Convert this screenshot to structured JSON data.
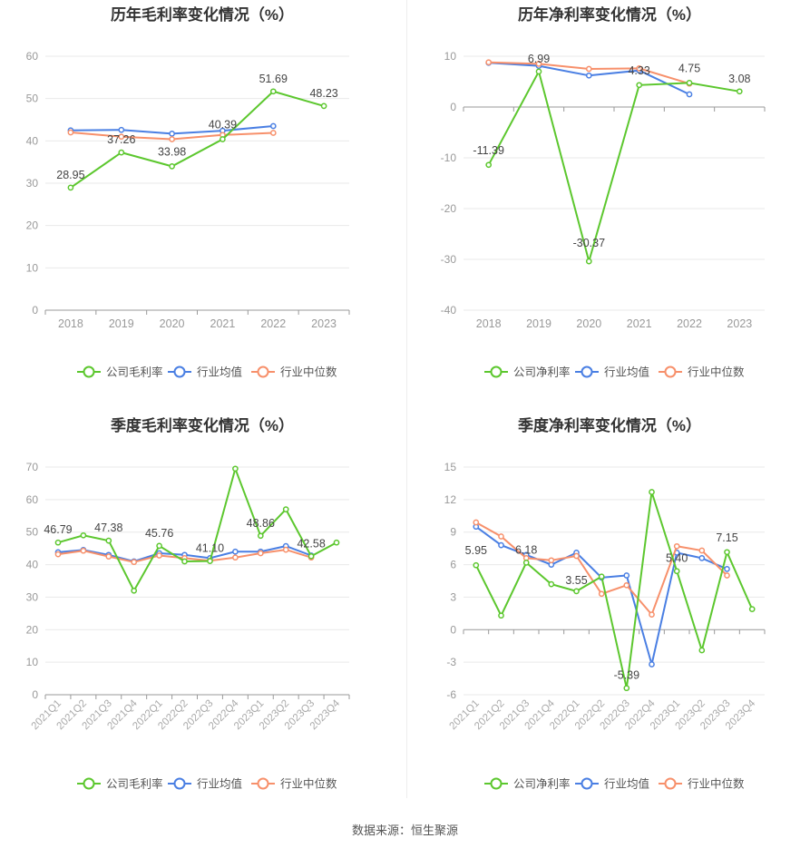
{
  "colors": {
    "company": "#5cc72e",
    "avg": "#4a7fe3",
    "median": "#f7906b",
    "grid": "#e9e9e9",
    "axis": "#999999"
  },
  "footer": "数据来源：恒生聚源",
  "chart_data": [
    {
      "type": "line",
      "title": "历年毛利率变化情况（%）",
      "categories": [
        "2018",
        "2019",
        "2020",
        "2021",
        "2022",
        "2023"
      ],
      "ylim": [
        0,
        60
      ],
      "yticks": [
        "0",
        "10",
        "20",
        "30",
        "40",
        "50",
        "60"
      ],
      "legend": "bottom",
      "series": [
        {
          "name": "公司毛利率",
          "values": [
            28.95,
            37.26,
            33.98,
            40.39,
            51.69,
            48.23
          ],
          "labels": [
            "28.95",
            "37.26",
            "33.98",
            "40.39",
            "51.69",
            "48.23"
          ]
        },
        {
          "name": "行业均值",
          "values": [
            42.5,
            42.6,
            41.7,
            42.4,
            43.5,
            null
          ]
        },
        {
          "name": "行业中位数",
          "values": [
            42.0,
            41.0,
            40.4,
            41.4,
            41.9,
            null
          ]
        }
      ]
    },
    {
      "type": "line",
      "title": "历年净利率变化情况（%）",
      "categories": [
        "2018",
        "2019",
        "2020",
        "2021",
        "2022",
        "2023"
      ],
      "ylim": [
        -40,
        10
      ],
      "yticks": [
        "-40",
        "-30",
        "-20",
        "-10",
        "0",
        "10"
      ],
      "legend": "bottom",
      "series": [
        {
          "name": "公司净利率",
          "values": [
            -11.39,
            6.99,
            -30.37,
            4.33,
            4.75,
            3.08
          ],
          "labels": [
            "-11.39",
            "6.99",
            "-30.37",
            "4.33",
            "4.75",
            "3.08"
          ]
        },
        {
          "name": "行业均值",
          "values": [
            8.7,
            8.1,
            6.2,
            7.2,
            2.5,
            null
          ]
        },
        {
          "name": "行业中位数",
          "values": [
            8.8,
            8.5,
            7.5,
            7.6,
            4.6,
            null
          ]
        }
      ]
    },
    {
      "type": "line",
      "title": "季度毛利率变化情况（%）",
      "categories": [
        "2021Q1",
        "2021Q2",
        "2021Q3",
        "2021Q4",
        "2022Q1",
        "2022Q2",
        "2022Q3",
        "2022Q4",
        "2023Q1",
        "2023Q2",
        "2023Q3",
        "2023Q4"
      ],
      "ylim": [
        0,
        70
      ],
      "yticks": [
        "0",
        "10",
        "20",
        "30",
        "40",
        "50",
        "60",
        "70"
      ],
      "legend": "bottom",
      "series": [
        {
          "name": "公司毛利率",
          "values": [
            46.79,
            49.0,
            47.38,
            32.0,
            45.76,
            41.0,
            41.1,
            69.5,
            48.86,
            57.0,
            42.58,
            46.8
          ],
          "labels": [
            "46.79",
            "",
            "47.38",
            "",
            "45.76",
            "",
            "41.10",
            "",
            "48.86",
            "",
            "42.58",
            ""
          ]
        },
        {
          "name": "行业均值",
          "values": [
            43.8,
            44.5,
            43.0,
            41.0,
            43.5,
            43.0,
            42.0,
            44.0,
            44.0,
            45.7,
            42.8,
            null
          ]
        },
        {
          "name": "行业中位数",
          "values": [
            43.2,
            44.3,
            42.5,
            40.8,
            42.8,
            42.0,
            41.2,
            42.2,
            43.5,
            44.6,
            42.2,
            null
          ]
        }
      ]
    },
    {
      "type": "line",
      "title": "季度净利率变化情况（%）",
      "categories": [
        "2021Q1",
        "2021Q2",
        "2021Q3",
        "2021Q4",
        "2022Q1",
        "2022Q2",
        "2022Q3",
        "2022Q4",
        "2023Q1",
        "2023Q2",
        "2023Q3",
        "2023Q4"
      ],
      "ylim": [
        -6,
        15
      ],
      "yticks": [
        "-6",
        "-3",
        "0",
        "3",
        "6",
        "9",
        "12",
        "15"
      ],
      "legend": "bottom",
      "series": [
        {
          "name": "公司净利率",
          "values": [
            5.95,
            1.3,
            6.18,
            4.2,
            3.55,
            4.9,
            -5.39,
            12.7,
            5.4,
            -1.9,
            7.15,
            1.9
          ],
          "labels": [
            "5.95",
            "",
            "6.18",
            "",
            "3.55",
            "",
            "-5.39",
            "",
            "5.40",
            "",
            "7.15",
            ""
          ]
        },
        {
          "name": "行业均值",
          "values": [
            9.5,
            7.8,
            6.9,
            6.0,
            7.1,
            4.8,
            5.0,
            -3.2,
            7.1,
            6.6,
            5.6,
            null
          ]
        },
        {
          "name": "行业中位数",
          "values": [
            9.9,
            8.6,
            6.6,
            6.4,
            6.8,
            3.3,
            4.1,
            1.4,
            7.7,
            7.3,
            5.0,
            null
          ]
        }
      ]
    }
  ]
}
